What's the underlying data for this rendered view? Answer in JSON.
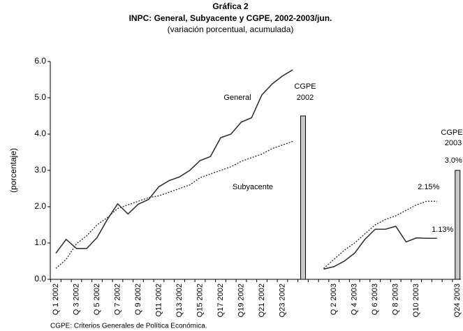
{
  "chart_data": {
    "type": "line",
    "title": "Gráfica 2",
    "subtitle": "INPC: General, Subyacente y CGPE, 2002-2003/jun.",
    "subtitle2": "(variación porcentual, acumulada)",
    "y_label": "(porcentaje)",
    "footnote": "CGPE: Criterios Generales de Política Económica.",
    "annotations": [
      "CGPE",
      "2002",
      "CGPE",
      "2003"
    ],
    "categories": [
      "Q 1 2002",
      null,
      "Q 3 2002",
      null,
      "Q 5 2002",
      null,
      "Q 7 2002",
      null,
      "Q 9 2002",
      null,
      "Q11 2002",
      null,
      "Q13 2002",
      null,
      "Q15 2002",
      null,
      "Q17 2002",
      null,
      "Q19 2002",
      null,
      "Q21 2002",
      null,
      "Q23 2002",
      null,
      null,
      null,
      null,
      "Q 2 2003",
      null,
      "Q 4 2003",
      null,
      "Q 6 2003",
      null,
      "Q 8 2003",
      null,
      "Q10 2003",
      null,
      null,
      null,
      "Q24 2003"
    ],
    "series": [
      {
        "name": "General",
        "kind": "line",
        "style": "solid",
        "color": "#333333",
        "values": [
          0.72,
          1.1,
          0.85,
          0.85,
          1.15,
          1.65,
          2.08,
          1.8,
          2.07,
          2.2,
          2.55,
          2.72,
          2.82,
          3.0,
          3.27,
          3.38,
          3.9,
          4.0,
          4.33,
          4.45,
          5.08,
          5.38,
          5.6,
          5.77,
          null,
          null,
          0.28,
          0.35,
          0.5,
          0.72,
          1.1,
          1.38,
          1.38,
          1.46,
          1.03,
          1.14,
          1.13,
          1.13,
          null,
          null
        ],
        "value_labels": [
          null,
          null,
          null,
          null,
          null,
          null,
          null,
          null,
          null,
          null,
          null,
          null,
          null,
          null,
          null,
          null,
          null,
          null,
          null,
          null,
          null,
          null,
          null,
          null,
          null,
          null,
          null,
          null,
          null,
          null,
          null,
          null,
          null,
          null,
          null,
          null,
          null,
          "1.13%",
          null,
          null
        ]
      },
      {
        "name": "Subyacente",
        "kind": "line",
        "style": "dotted",
        "color": "#333333",
        "values": [
          0.3,
          0.55,
          0.98,
          1.2,
          1.5,
          1.7,
          1.95,
          2.05,
          2.15,
          2.25,
          2.3,
          2.4,
          2.5,
          2.6,
          2.8,
          2.9,
          3.0,
          3.1,
          3.25,
          3.35,
          3.45,
          3.6,
          3.7,
          3.8,
          null,
          null,
          0.3,
          0.55,
          0.8,
          1.0,
          1.25,
          1.5,
          1.65,
          1.75,
          1.9,
          2.05,
          2.15,
          2.15,
          null,
          null
        ],
        "value_labels": [
          null,
          null,
          null,
          null,
          null,
          null,
          null,
          null,
          null,
          null,
          null,
          null,
          null,
          null,
          null,
          null,
          null,
          null,
          null,
          null,
          null,
          null,
          null,
          null,
          null,
          null,
          null,
          null,
          null,
          null,
          null,
          null,
          null,
          null,
          null,
          null,
          null,
          "2.15%",
          null,
          null
        ]
      },
      {
        "name": "CGPE",
        "kind": "bar",
        "color": "#c8c8c8",
        "values": [
          null,
          null,
          null,
          null,
          null,
          null,
          null,
          null,
          null,
          null,
          null,
          null,
          null,
          null,
          null,
          null,
          null,
          null,
          null,
          null,
          null,
          null,
          null,
          null,
          4.5,
          null,
          null,
          null,
          null,
          null,
          null,
          null,
          null,
          null,
          null,
          null,
          null,
          null,
          null,
          3.0
        ],
        "value_labels": [
          null,
          null,
          null,
          null,
          null,
          null,
          null,
          null,
          null,
          null,
          null,
          null,
          null,
          null,
          null,
          null,
          null,
          null,
          null,
          null,
          null,
          null,
          null,
          null,
          null,
          null,
          null,
          null,
          null,
          null,
          null,
          null,
          null,
          null,
          null,
          null,
          null,
          null,
          null,
          "3.0%"
        ]
      }
    ],
    "ylim": [
      0,
      6
    ],
    "yticks": [
      {
        "value": 0,
        "label": "0.0"
      },
      {
        "value": 1,
        "label": "1.0"
      },
      {
        "value": 2,
        "label": "2.0"
      },
      {
        "value": 3,
        "label": "3.0"
      },
      {
        "value": 4,
        "label": "4.0"
      },
      {
        "value": 5,
        "label": "5.0"
      },
      {
        "value": 6,
        "label": "6.0"
      }
    ],
    "grid": false
  }
}
